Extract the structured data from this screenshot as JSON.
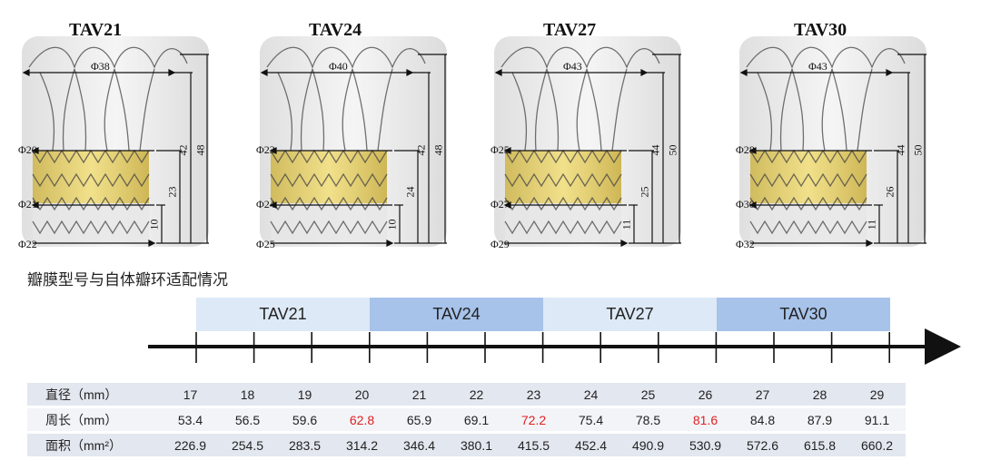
{
  "valves": [
    {
      "model": "TAV21",
      "top_dia": "Φ38",
      "mid_dia": "Φ20",
      "low_dia": "Φ21",
      "base_dia": "Φ22",
      "h_total": "48",
      "h_frame": "42",
      "h_mid": "23",
      "h_low": "10"
    },
    {
      "model": "TAV24",
      "top_dia": "Φ40",
      "mid_dia": "Φ23",
      "low_dia": "Φ24",
      "base_dia": "Φ25",
      "h_total": "48",
      "h_frame": "42",
      "h_mid": "24",
      "h_low": "10"
    },
    {
      "model": "TAV27",
      "top_dia": "Φ43",
      "mid_dia": "Φ25",
      "low_dia": "Φ27",
      "base_dia": "Φ29",
      "h_total": "50",
      "h_frame": "44",
      "h_mid": "25",
      "h_low": "11"
    },
    {
      "model": "TAV30",
      "top_dia": "Φ43",
      "mid_dia": "Φ28",
      "low_dia": "Φ30",
      "base_dia": "Φ32",
      "h_total": "50",
      "h_frame": "44",
      "h_mid": "26",
      "h_low": "11"
    }
  ],
  "subtitle": "瓣膜型号与自体瓣环适配情况",
  "bands": [
    {
      "label": "TAV21"
    },
    {
      "label": "TAV24"
    },
    {
      "label": "TAV27"
    },
    {
      "label": "TAV30"
    }
  ],
  "table": {
    "rows": [
      {
        "label": "直径（mm）",
        "values": [
          "17",
          "18",
          "19",
          "20",
          "21",
          "22",
          "23",
          "24",
          "25",
          "26",
          "27",
          "28",
          "29"
        ]
      },
      {
        "label": "周长（mm）",
        "values": [
          "53.4",
          "56.5",
          "59.6",
          "62.8",
          "65.9",
          "69.1",
          "72.2",
          "75.4",
          "78.5",
          "81.6",
          "84.8",
          "87.9",
          "91.1"
        ]
      },
      {
        "label": "面积（mm²）",
        "values": [
          "226.9",
          "254.5",
          "283.5",
          "314.2",
          "346.4",
          "380.1",
          "415.5",
          "452.4",
          "490.9",
          "530.9",
          "572.6",
          "615.8",
          "660.2"
        ]
      }
    ],
    "highlight_color": "#e02020",
    "highlight_row": 1,
    "highlight_cols": [
      3,
      6,
      9
    ]
  }
}
